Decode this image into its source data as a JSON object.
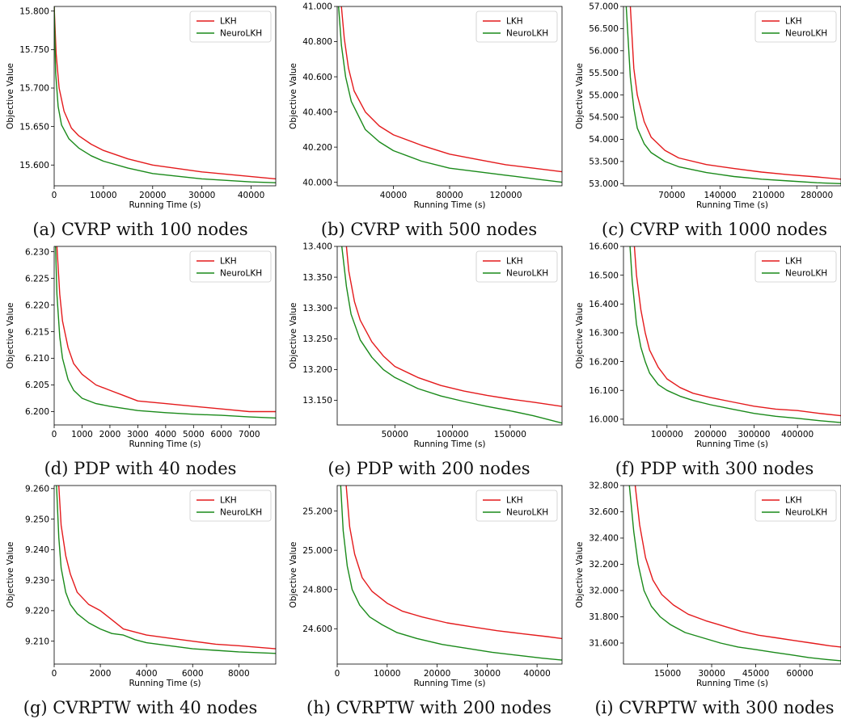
{
  "figure": {
    "captions": [
      "(a) CVRP with 100 nodes",
      "(b) CVRP with 500 nodes",
      "(c) CVRP with 1000 nodes",
      "(d) PDP with 40 nodes",
      "(e) PDP with 200 nodes",
      "(f) PDP with 300 nodes",
      "(g) CVRPTW with 40 nodes",
      "(h) CVRPTW with 200 nodes",
      "(i) CVRPTW with 300 nodes"
    ]
  },
  "colors": {
    "LKH": "#e41a1c",
    "NeuroLKH": "#1a8a1a"
  },
  "chart_data": [
    {
      "type": "line",
      "title": "(a) CVRP with 100 nodes",
      "xlabel": "Running Time (s)",
      "ylabel": "Objective Value",
      "xlim": [
        0,
        45000
      ],
      "ylim": [
        15.573,
        15.806
      ],
      "xticks": [
        0,
        10000,
        20000,
        30000,
        40000
      ],
      "xticklabels": [
        "0",
        "10000",
        "20000",
        "30000",
        "40000"
      ],
      "yticks": [
        15.6,
        15.65,
        15.7,
        15.75,
        15.8
      ],
      "yticklabels": [
        "15.600",
        "15.650",
        "15.700",
        "15.750",
        "15.800"
      ],
      "legend": "top-right",
      "grid": false,
      "series": [
        {
          "name": "LKH",
          "x": [
            0,
            400,
            1000,
            2000,
            3500,
            5000,
            7500,
            10000,
            15000,
            20000,
            30000,
            40000,
            45000
          ],
          "y": [
            15.806,
            15.745,
            15.7,
            15.67,
            15.648,
            15.638,
            15.627,
            15.619,
            15.608,
            15.6,
            15.591,
            15.585,
            15.582
          ]
        },
        {
          "name": "NeuroLKH",
          "x": [
            0,
            300,
            800,
            1500,
            3000,
            5000,
            7500,
            10000,
            15000,
            20000,
            30000,
            40000,
            45000
          ],
          "y": [
            15.806,
            15.72,
            15.676,
            15.652,
            15.634,
            15.622,
            15.612,
            15.605,
            15.596,
            15.589,
            15.582,
            15.578,
            15.577
          ]
        }
      ]
    },
    {
      "type": "line",
      "title": "(b) CVRP with 500 nodes",
      "xlabel": "Running Time (s)",
      "ylabel": "Objective Value",
      "xlim": [
        0,
        160000
      ],
      "ylim": [
        39.98,
        41.0
      ],
      "xticks": [
        40000,
        80000,
        120000
      ],
      "xticklabels": [
        "40000",
        "80000",
        "120000"
      ],
      "yticks": [
        40.0,
        40.2,
        40.4,
        40.6,
        40.8,
        41.0
      ],
      "yticklabels": [
        "40.000",
        "40.200",
        "40.400",
        "40.600",
        "40.800",
        "41.000"
      ],
      "legend": "top-right",
      "grid": false,
      "series": [
        {
          "name": "LKH",
          "x": [
            3000,
            5000,
            8000,
            12000,
            20000,
            30000,
            40000,
            60000,
            80000,
            100000,
            120000,
            140000,
            160000
          ],
          "y": [
            41.0,
            40.82,
            40.65,
            40.52,
            40.4,
            40.32,
            40.27,
            40.21,
            40.16,
            40.13,
            40.1,
            40.08,
            40.06
          ]
        },
        {
          "name": "NeuroLKH",
          "x": [
            1000,
            3000,
            6000,
            10000,
            20000,
            30000,
            40000,
            60000,
            80000,
            100000,
            120000,
            140000,
            160000
          ],
          "y": [
            41.0,
            40.78,
            40.6,
            40.46,
            40.3,
            40.23,
            40.18,
            40.12,
            40.08,
            40.06,
            40.04,
            40.02,
            40.0
          ]
        }
      ]
    },
    {
      "type": "line",
      "title": "(c) CVRP with 1000 nodes",
      "xlabel": "Running Time (s)",
      "ylabel": "Objective Value",
      "xlim": [
        0,
        315000
      ],
      "ylim": [
        52.95,
        57.0
      ],
      "xticks": [
        70000,
        140000,
        210000,
        280000
      ],
      "xticklabels": [
        "70000",
        "140000",
        "210000",
        "280000"
      ],
      "yticks": [
        53.0,
        53.5,
        54.0,
        54.5,
        55.0,
        55.5,
        56.0,
        56.5,
        57.0
      ],
      "yticklabels": [
        "53.000",
        "53.500",
        "54.000",
        "54.500",
        "55.000",
        "55.500",
        "56.000",
        "56.500",
        "57.000"
      ],
      "legend": "top-right",
      "grid": false,
      "series": [
        {
          "name": "LKH",
          "x": [
            10000,
            15000,
            20000,
            30000,
            40000,
            60000,
            80000,
            120000,
            160000,
            200000,
            240000,
            280000,
            315000
          ],
          "y": [
            57.0,
            55.6,
            55.0,
            54.4,
            54.05,
            53.75,
            53.58,
            53.43,
            53.34,
            53.26,
            53.2,
            53.15,
            53.1
          ]
        },
        {
          "name": "NeuroLKH",
          "x": [
            4000,
            10000,
            15000,
            20000,
            30000,
            40000,
            60000,
            80000,
            120000,
            160000,
            200000,
            240000,
            280000,
            315000
          ],
          "y": [
            57.0,
            55.4,
            54.7,
            54.25,
            53.9,
            53.7,
            53.5,
            53.38,
            53.25,
            53.16,
            53.1,
            53.06,
            53.02,
            53.0
          ]
        }
      ]
    },
    {
      "type": "line",
      "title": "(d) PDP with 40 nodes",
      "xlabel": "Running Time (s)",
      "ylabel": "Objective Value",
      "xlim": [
        0,
        7950
      ],
      "ylim": [
        6.1975,
        6.231
      ],
      "xticks": [
        0,
        1000,
        2000,
        3000,
        4000,
        5000,
        6000,
        7000
      ],
      "xticklabels": [
        "0",
        "1000",
        "2000",
        "3000",
        "4000",
        "5000",
        "6000",
        "7000"
      ],
      "yticks": [
        6.2,
        6.205,
        6.21,
        6.215,
        6.22,
        6.225,
        6.23
      ],
      "yticklabels": [
        "6.200",
        "6.205",
        "6.210",
        "6.215",
        "6.220",
        "6.225",
        "6.230"
      ],
      "legend": "top-right",
      "grid": false,
      "series": [
        {
          "name": "LKH",
          "x": [
            100,
            200,
            300,
            500,
            700,
            1000,
            1500,
            2000,
            2500,
            3000,
            4000,
            5000,
            6000,
            7000,
            7950
          ],
          "y": [
            6.231,
            6.222,
            6.217,
            6.212,
            6.209,
            6.207,
            6.205,
            6.204,
            6.203,
            6.202,
            6.2015,
            6.201,
            6.2005,
            6.2,
            6.2
          ]
        },
        {
          "name": "NeuroLKH",
          "x": [
            50,
            100,
            200,
            300,
            500,
            700,
            1000,
            1500,
            2000,
            3000,
            4000,
            5000,
            6000,
            7000,
            7950
          ],
          "y": [
            6.231,
            6.222,
            6.214,
            6.21,
            6.206,
            6.204,
            6.2025,
            6.2015,
            6.201,
            6.2002,
            6.1998,
            6.1995,
            6.1993,
            6.199,
            6.1988
          ]
        }
      ]
    },
    {
      "type": "line",
      "title": "(e) PDP with 200 nodes",
      "xlabel": "Running Time (s)",
      "ylabel": "Objective Value",
      "xlim": [
        0,
        195000
      ],
      "ylim": [
        13.11,
        13.4
      ],
      "xticks": [
        50000,
        100000,
        150000
      ],
      "xticklabels": [
        "50000",
        "100000",
        "150000"
      ],
      "yticks": [
        13.15,
        13.2,
        13.25,
        13.3,
        13.35,
        13.4
      ],
      "yticklabels": [
        "13.150",
        "13.200",
        "13.250",
        "13.300",
        "13.350",
        "13.400"
      ],
      "legend": "top-right",
      "grid": false,
      "series": [
        {
          "name": "LKH",
          "x": [
            8000,
            10000,
            15000,
            20000,
            30000,
            40000,
            50000,
            70000,
            90000,
            110000,
            130000,
            150000,
            170000,
            195000
          ],
          "y": [
            13.4,
            13.36,
            13.31,
            13.28,
            13.245,
            13.222,
            13.205,
            13.187,
            13.174,
            13.165,
            13.158,
            13.152,
            13.147,
            13.14
          ]
        },
        {
          "name": "NeuroLKH",
          "x": [
            4000,
            8000,
            12000,
            20000,
            30000,
            40000,
            50000,
            70000,
            90000,
            110000,
            130000,
            150000,
            170000,
            195000
          ],
          "y": [
            13.4,
            13.335,
            13.29,
            13.248,
            13.22,
            13.2,
            13.187,
            13.169,
            13.157,
            13.148,
            13.14,
            13.133,
            13.125,
            13.113
          ]
        }
      ]
    },
    {
      "type": "line",
      "title": "(f) PDP with 300 nodes",
      "xlabel": "Running Time (s)",
      "ylabel": "Objective Value",
      "xlim": [
        0,
        500000
      ],
      "ylim": [
        15.98,
        16.6
      ],
      "xticks": [
        100000,
        200000,
        300000,
        400000
      ],
      "xticklabels": [
        "100000",
        "200000",
        "300000",
        "400000"
      ],
      "yticks": [
        16.0,
        16.1,
        16.2,
        16.3,
        16.4,
        16.5,
        16.6
      ],
      "yticklabels": [
        "16.000",
        "16.100",
        "16.200",
        "16.300",
        "16.400",
        "16.500",
        "16.600"
      ],
      "legend": "top-right",
      "grid": false,
      "series": [
        {
          "name": "LKH",
          "x": [
            25000,
            30000,
            40000,
            50000,
            60000,
            80000,
            100000,
            130000,
            160000,
            200000,
            250000,
            300000,
            350000,
            400000,
            450000,
            500000
          ],
          "y": [
            16.6,
            16.5,
            16.38,
            16.3,
            16.24,
            16.18,
            16.14,
            16.11,
            16.09,
            16.075,
            16.06,
            16.045,
            16.035,
            16.03,
            16.02,
            16.012
          ]
        },
        {
          "name": "NeuroLKH",
          "x": [
            15000,
            20000,
            30000,
            40000,
            50000,
            60000,
            80000,
            100000,
            130000,
            160000,
            200000,
            250000,
            300000,
            350000,
            400000,
            450000,
            500000
          ],
          "y": [
            16.6,
            16.48,
            16.33,
            16.25,
            16.2,
            16.16,
            16.12,
            16.1,
            16.08,
            16.065,
            16.05,
            16.035,
            16.02,
            16.01,
            16.003,
            15.995,
            15.988
          ]
        }
      ]
    },
    {
      "type": "line",
      "title": "(g) CVRPTW with 40 nodes",
      "xlabel": "Running Time (s)",
      "ylabel": "Objective Value",
      "xlim": [
        0,
        9600
      ],
      "ylim": [
        9.2025,
        9.261
      ],
      "xticks": [
        0,
        2000,
        4000,
        6000,
        8000
      ],
      "xticklabels": [
        "0",
        "2000",
        "4000",
        "6000",
        "8000"
      ],
      "yticks": [
        9.21,
        9.22,
        9.23,
        9.24,
        9.25,
        9.26
      ],
      "yticklabels": [
        "9.210",
        "9.220",
        "9.230",
        "9.240",
        "9.250",
        "9.260"
      ],
      "legend": "top-right",
      "grid": false,
      "series": [
        {
          "name": "LKH",
          "x": [
            200,
            300,
            500,
            700,
            1000,
            1500,
            2000,
            2500,
            3000,
            3500,
            4000,
            5000,
            6000,
            7000,
            8000,
            9600
          ],
          "y": [
            9.261,
            9.248,
            9.238,
            9.232,
            9.226,
            9.222,
            9.22,
            9.217,
            9.214,
            9.213,
            9.212,
            9.211,
            9.21,
            9.209,
            9.2085,
            9.2075
          ]
        },
        {
          "name": "NeuroLKH",
          "x": [
            100,
            200,
            300,
            500,
            700,
            1000,
            1500,
            2000,
            2500,
            3000,
            3500,
            4000,
            5000,
            6000,
            7000,
            8000,
            9600
          ],
          "y": [
            9.261,
            9.244,
            9.234,
            9.226,
            9.222,
            9.219,
            9.216,
            9.214,
            9.2125,
            9.212,
            9.2105,
            9.2095,
            9.2085,
            9.2075,
            9.207,
            9.2065,
            9.206
          ]
        }
      ]
    },
    {
      "type": "line",
      "title": "(h) CVRPTW with 200 nodes",
      "xlabel": "Running Time (s)",
      "ylabel": "Objective Value",
      "xlim": [
        0,
        45000
      ],
      "ylim": [
        24.42,
        25.33
      ],
      "xticks": [
        0,
        10000,
        20000,
        30000,
        40000
      ],
      "xticklabels": [
        "0",
        "10000",
        "20000",
        "30000",
        "40000"
      ],
      "yticks": [
        24.6,
        24.8,
        25.0,
        25.2
      ],
      "yticklabels": [
        "24.600",
        "24.800",
        "25.000",
        "25.200"
      ],
      "legend": "top-right",
      "grid": false,
      "series": [
        {
          "name": "LKH",
          "x": [
            1800,
            2500,
            3500,
            5000,
            7000,
            10000,
            13000,
            17000,
            22000,
            27000,
            32000,
            37000,
            42000,
            45000
          ],
          "y": [
            25.33,
            25.12,
            24.98,
            24.86,
            24.79,
            24.73,
            24.69,
            24.66,
            24.63,
            24.61,
            24.59,
            24.575,
            24.56,
            24.55
          ]
        },
        {
          "name": "NeuroLKH",
          "x": [
            700,
            1200,
            2000,
            3000,
            4500,
            6500,
            9000,
            12000,
            16000,
            21000,
            26000,
            31000,
            36000,
            41000,
            45000
          ],
          "y": [
            25.33,
            25.1,
            24.92,
            24.8,
            24.72,
            24.66,
            24.62,
            24.58,
            24.55,
            24.52,
            24.5,
            24.48,
            24.465,
            24.45,
            24.44
          ]
        }
      ]
    },
    {
      "type": "line",
      "title": "(i) CVRPTW with 300 nodes",
      "xlabel": "Running Time (s)",
      "ylabel": "Objective Value",
      "xlim": [
        0,
        74000
      ],
      "ylim": [
        31.44,
        32.8
      ],
      "xticks": [
        15000,
        30000,
        45000,
        60000
      ],
      "xticklabels": [
        "15000",
        "30000",
        "45000",
        "60000"
      ],
      "yticks": [
        31.6,
        31.8,
        32.0,
        32.2,
        32.4,
        32.6,
        32.8
      ],
      "yticklabels": [
        "31.600",
        "31.800",
        "32.000",
        "32.200",
        "32.400",
        "32.600",
        "32.800"
      ],
      "legend": "top-right",
      "grid": false,
      "series": [
        {
          "name": "LKH",
          "x": [
            4000,
            5500,
            7500,
            10000,
            13000,
            17000,
            22000,
            28000,
            34000,
            40000,
            46000,
            52000,
            58000,
            64000,
            70000,
            74000
          ],
          "y": [
            32.8,
            32.5,
            32.25,
            32.08,
            31.97,
            31.89,
            31.82,
            31.77,
            31.73,
            31.69,
            31.66,
            31.64,
            31.62,
            31.6,
            31.58,
            31.57
          ]
        },
        {
          "name": "NeuroLKH",
          "x": [
            2000,
            3500,
            5000,
            7000,
            9500,
            12500,
            16000,
            21000,
            27000,
            33000,
            39000,
            45000,
            51000,
            57000,
            63000,
            69000,
            74000
          ],
          "y": [
            32.8,
            32.45,
            32.2,
            32.0,
            31.88,
            31.8,
            31.74,
            31.68,
            31.64,
            31.6,
            31.57,
            31.55,
            31.53,
            31.51,
            31.49,
            31.475,
            31.465
          ]
        }
      ]
    }
  ]
}
